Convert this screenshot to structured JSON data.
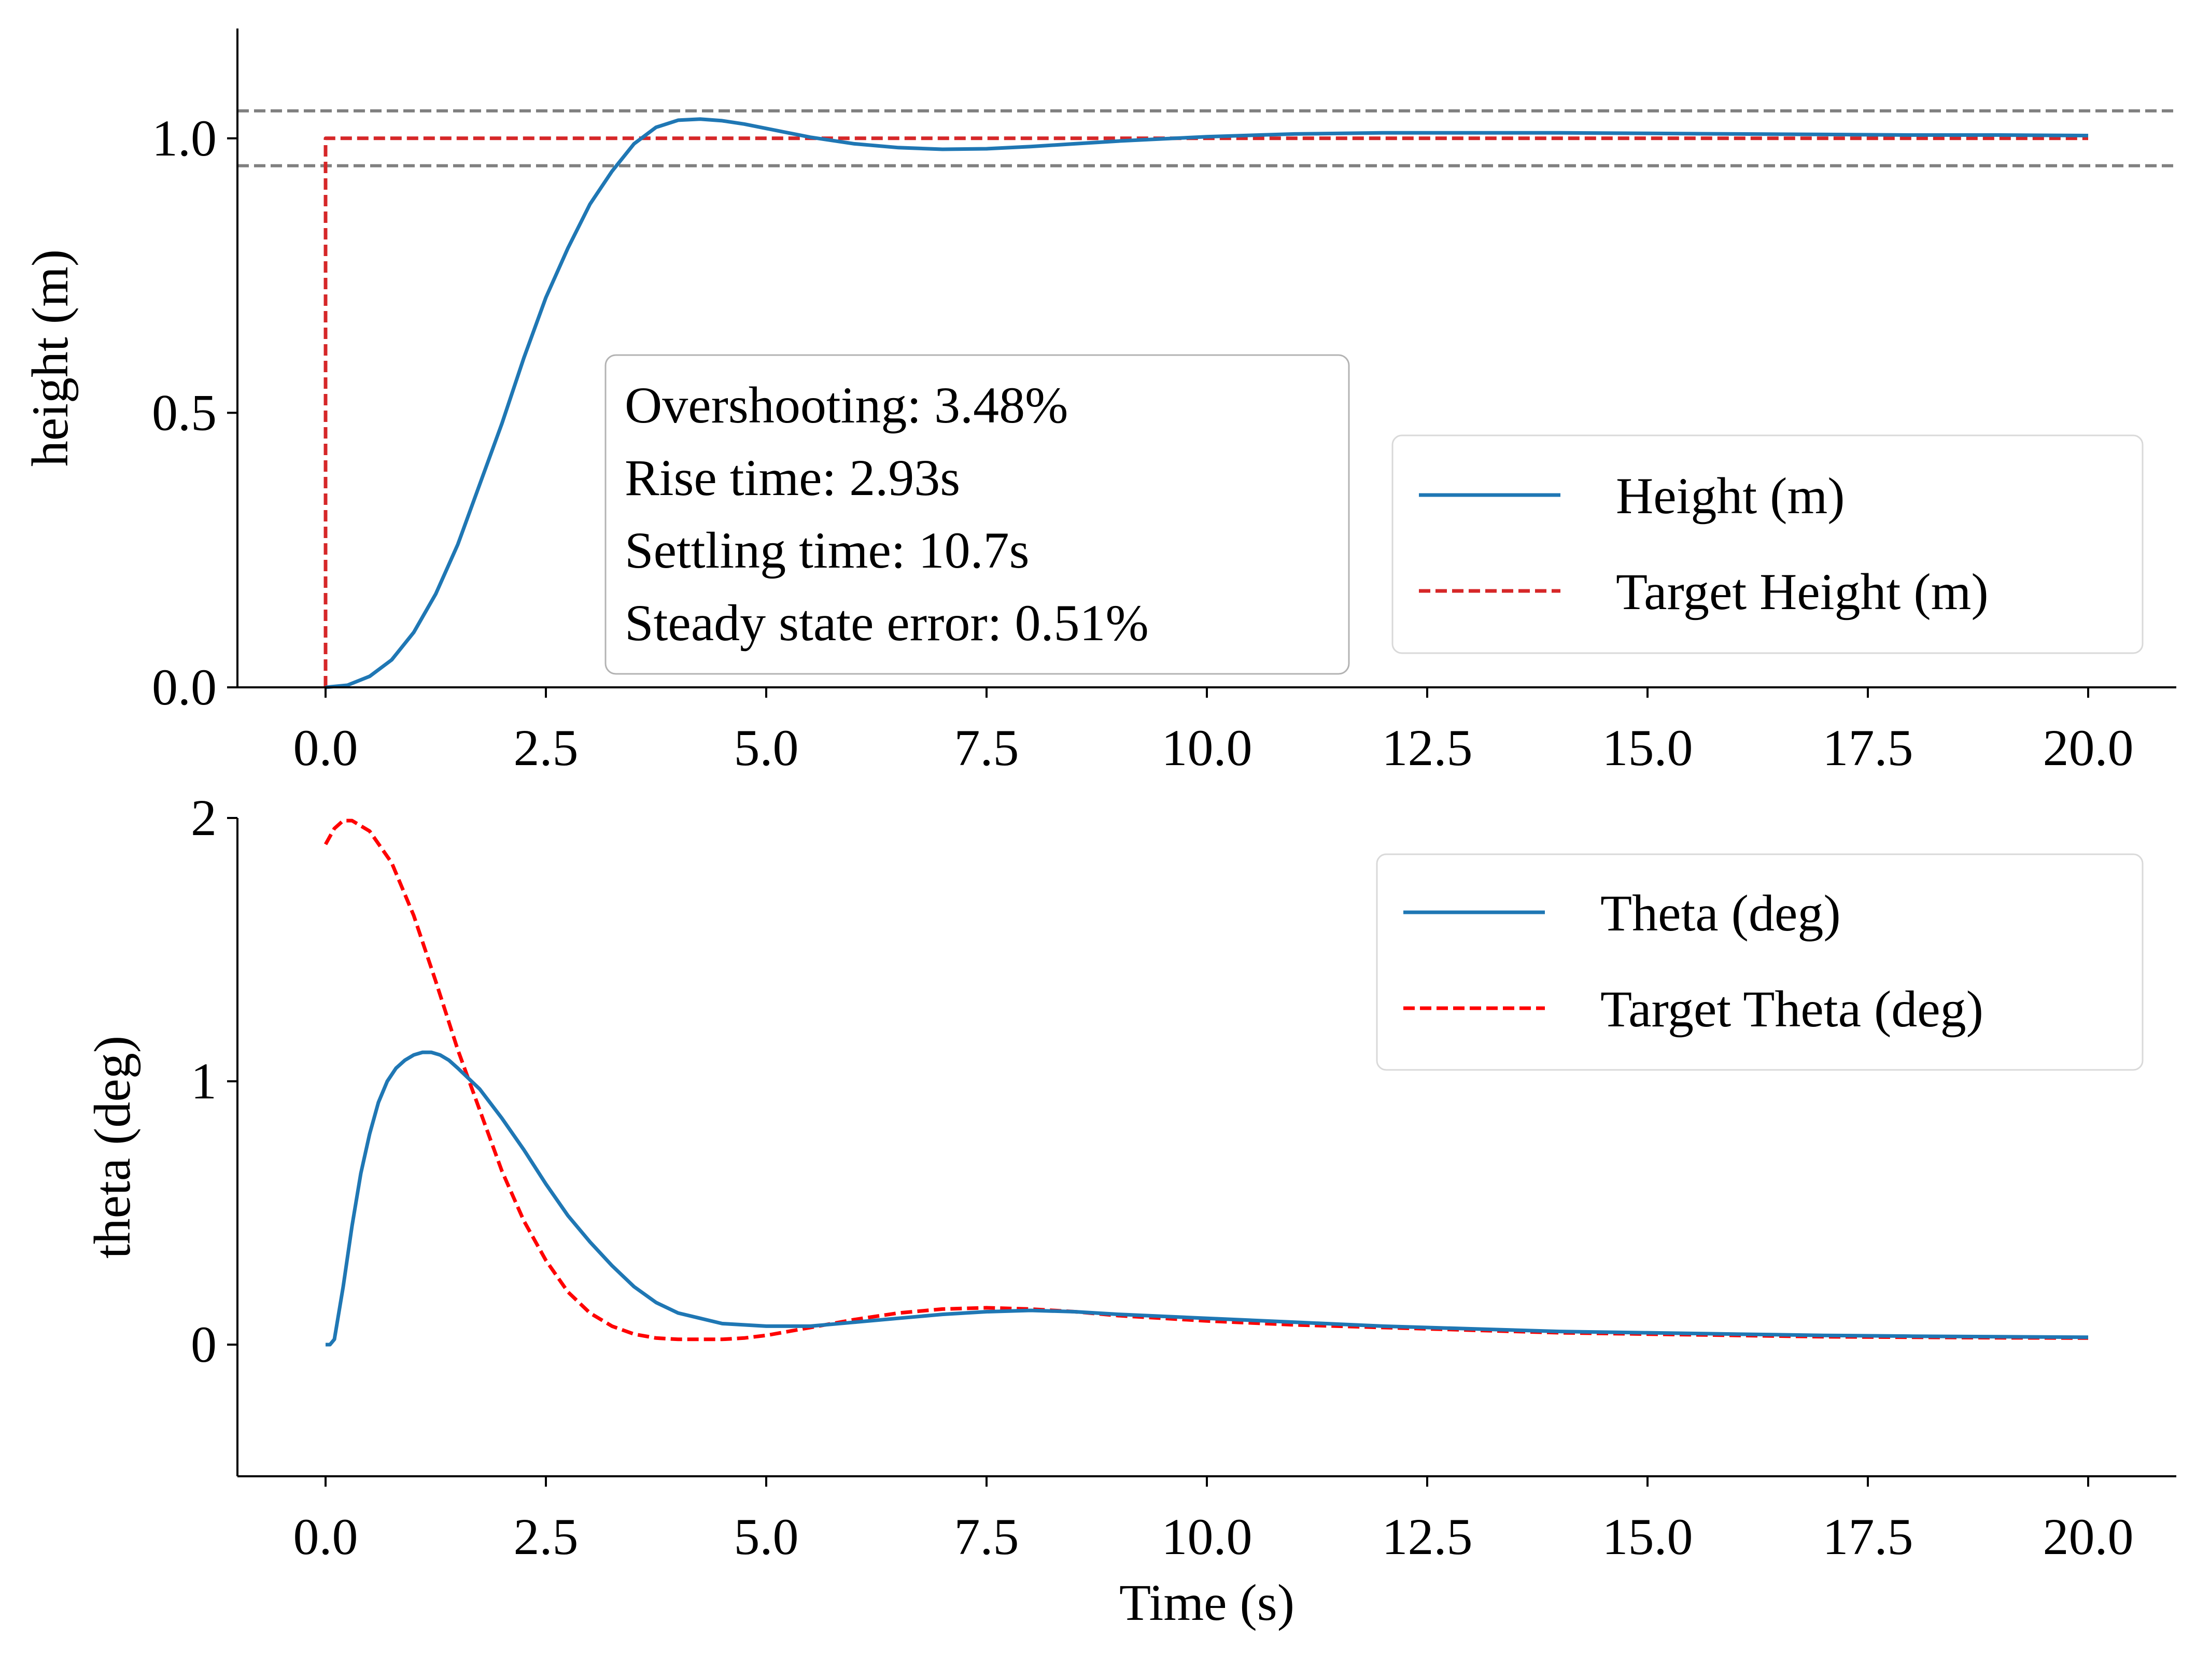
{
  "chart_data": [
    {
      "type": "line",
      "xlabel": "",
      "ylabel": "height (m)",
      "xlim": [
        -1.0,
        21.0
      ],
      "ylim": [
        0.0,
        1.2
      ],
      "xticks": [
        0.0,
        2.5,
        5.0,
        7.5,
        10.0,
        12.5,
        15.0,
        17.5,
        20.0
      ],
      "xtick_labels": [
        "0.0",
        "2.5",
        "5.0",
        "7.5",
        "10.0",
        "12.5",
        "15.0",
        "17.5",
        "20.0"
      ],
      "yticks": [
        0.0,
        0.5,
        1.0
      ],
      "ytick_labels": [
        "0.0",
        "0.5",
        "1.0"
      ],
      "grid": false,
      "legend_position": "lower-right",
      "reference_lines": [
        {
          "y": 1.05,
          "color": "#808080",
          "style": "dashed"
        },
        {
          "y": 0.95,
          "color": "#808080",
          "style": "dashed"
        }
      ],
      "annotation": {
        "position": "center",
        "lines": [
          "Overshooting: 3.48%",
          "Rise time: 2.93s",
          "Settling time: 10.7s",
          "Steady state error: 0.51%"
        ]
      },
      "series": [
        {
          "name": "Height (m)",
          "color": "#1f77b4",
          "style": "solid",
          "x": [
            0,
            0.25,
            0.5,
            0.75,
            1.0,
            1.25,
            1.5,
            1.75,
            2.0,
            2.25,
            2.5,
            2.75,
            3.0,
            3.25,
            3.5,
            3.75,
            4.0,
            4.25,
            4.5,
            4.75,
            5.0,
            5.5,
            6.0,
            6.5,
            7.0,
            7.5,
            8.0,
            8.5,
            9.0,
            9.5,
            10.0,
            11.0,
            12.0,
            13.0,
            14.0,
            15.0,
            16.0,
            17.0,
            18.0,
            19.0,
            20.0
          ],
          "y": [
            0.0,
            0.004,
            0.02,
            0.05,
            0.1,
            0.17,
            0.26,
            0.37,
            0.48,
            0.6,
            0.71,
            0.8,
            0.88,
            0.94,
            0.99,
            1.02,
            1.033,
            1.035,
            1.032,
            1.026,
            1.018,
            1.002,
            0.99,
            0.983,
            0.98,
            0.981,
            0.985,
            0.99,
            0.995,
            0.999,
            1.003,
            1.008,
            1.01,
            1.01,
            1.01,
            1.009,
            1.008,
            1.007,
            1.006,
            1.006,
            1.005
          ]
        },
        {
          "name": "Target Height (m)",
          "color": "#d62728",
          "style": "dashed",
          "x": [
            0,
            0,
            20
          ],
          "y": [
            0.0,
            1.0,
            1.0
          ]
        }
      ]
    },
    {
      "type": "line",
      "xlabel": "Time (s)",
      "ylabel": "theta (deg)",
      "xlim": [
        -1.0,
        21.0
      ],
      "ylim": [
        -0.5,
        2.0
      ],
      "xticks": [
        0.0,
        2.5,
        5.0,
        7.5,
        10.0,
        12.5,
        15.0,
        17.5,
        20.0
      ],
      "xtick_labels": [
        "0.0",
        "2.5",
        "5.0",
        "7.5",
        "10.0",
        "12.5",
        "15.0",
        "17.5",
        "20.0"
      ],
      "yticks": [
        0,
        1,
        2
      ],
      "ytick_labels": [
        "0",
        "1",
        "2"
      ],
      "grid": false,
      "legend_position": "upper-right",
      "series": [
        {
          "name": "Theta (deg)",
          "color": "#1f77b4",
          "style": "solid",
          "x": [
            0,
            0.05,
            0.1,
            0.2,
            0.3,
            0.4,
            0.5,
            0.6,
            0.7,
            0.8,
            0.9,
            1.0,
            1.1,
            1.2,
            1.3,
            1.4,
            1.5,
            1.75,
            2.0,
            2.25,
            2.5,
            2.75,
            3.0,
            3.25,
            3.5,
            3.75,
            4.0,
            4.25,
            4.5,
            5.0,
            5.5,
            6.0,
            6.5,
            7.0,
            7.5,
            8.0,
            8.5,
            9.0,
            10.0,
            11.0,
            12.0,
            13.0,
            14.0,
            15.0,
            16.0,
            17.0,
            18.0,
            19.0,
            20.0
          ],
          "y": [
            0.0,
            0.0,
            0.02,
            0.22,
            0.45,
            0.65,
            0.8,
            0.92,
            1.0,
            1.05,
            1.08,
            1.1,
            1.11,
            1.11,
            1.1,
            1.08,
            1.05,
            0.97,
            0.86,
            0.74,
            0.61,
            0.49,
            0.39,
            0.3,
            0.22,
            0.16,
            0.12,
            0.1,
            0.08,
            0.07,
            0.07,
            0.085,
            0.1,
            0.115,
            0.125,
            0.13,
            0.125,
            0.115,
            0.1,
            0.085,
            0.07,
            0.06,
            0.05,
            0.045,
            0.04,
            0.035,
            0.032,
            0.03,
            0.028
          ]
        },
        {
          "name": "Target Theta (deg)",
          "color": "#ff0000",
          "style": "dashed",
          "x": [
            0,
            0.1,
            0.2,
            0.3,
            0.5,
            0.75,
            1.0,
            1.25,
            1.5,
            1.75,
            2.0,
            2.25,
            2.5,
            2.75,
            3.0,
            3.25,
            3.5,
            3.75,
            4.0,
            4.25,
            4.5,
            4.75,
            5.0,
            5.5,
            6.0,
            6.5,
            7.0,
            7.5,
            8.0,
            8.5,
            9.0,
            10.0,
            11.0,
            12.0,
            13.0,
            14.0,
            15.0,
            16.0,
            17.0,
            18.0,
            19.0,
            20.0
          ],
          "y": [
            1.9,
            1.96,
            1.99,
            1.99,
            1.95,
            1.83,
            1.63,
            1.38,
            1.12,
            0.89,
            0.66,
            0.47,
            0.32,
            0.2,
            0.12,
            0.07,
            0.04,
            0.025,
            0.02,
            0.02,
            0.02,
            0.025,
            0.035,
            0.065,
            0.095,
            0.12,
            0.135,
            0.14,
            0.135,
            0.125,
            0.11,
            0.09,
            0.075,
            0.065,
            0.055,
            0.045,
            0.04,
            0.035,
            0.03,
            0.028,
            0.026,
            0.025
          ]
        }
      ]
    }
  ]
}
